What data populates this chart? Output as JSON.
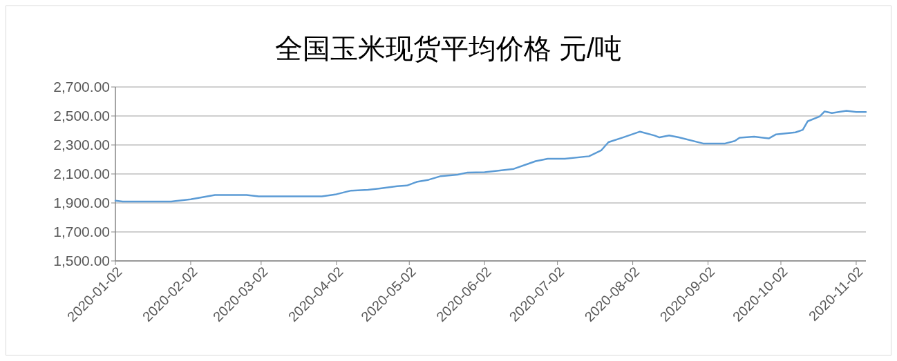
{
  "chart_data": {
    "type": "line",
    "title": "全国玉米现货平均价格 元/吨",
    "x": [
      "2020-01-02",
      "2020-01-05",
      "2020-01-25",
      "2020-02-02",
      "2020-02-12",
      "2020-02-25",
      "2020-03-01",
      "2020-03-27",
      "2020-04-02",
      "2020-04-08",
      "2020-04-15",
      "2020-04-20",
      "2020-04-27",
      "2020-05-01",
      "2020-05-05",
      "2020-05-10",
      "2020-05-15",
      "2020-05-22",
      "2020-05-26",
      "2020-06-02",
      "2020-06-14",
      "2020-06-23",
      "2020-06-28",
      "2020-07-05",
      "2020-07-15",
      "2020-07-20",
      "2020-07-23",
      "2020-07-29",
      "2020-08-05",
      "2020-08-11",
      "2020-08-13",
      "2020-08-17",
      "2020-08-21",
      "2020-08-31",
      "2020-09-09",
      "2020-09-13",
      "2020-09-15",
      "2020-09-21",
      "2020-09-27",
      "2020-09-30",
      "2020-10-08",
      "2020-10-11",
      "2020-10-13",
      "2020-10-18",
      "2020-10-20",
      "2020-10-23",
      "2020-10-29",
      "2020-11-02",
      "2020-11-06"
    ],
    "series": [
      {
        "color": "#5b9bd5",
        "values": [
          1915,
          1910,
          1910,
          1925,
          1955,
          1955,
          1945,
          1945,
          1960,
          1985,
          1990,
          2000,
          2015,
          2020,
          2045,
          2060,
          2085,
          2095,
          2110,
          2112,
          2135,
          2188,
          2205,
          2205,
          2222,
          2262,
          2319,
          2352,
          2392,
          2365,
          2352,
          2365,
          2352,
          2310,
          2310,
          2327,
          2350,
          2357,
          2345,
          2373,
          2387,
          2404,
          2463,
          2497,
          2531,
          2520,
          2536,
          2527,
          2527
        ]
      }
    ],
    "xlim": [
      "2020-01-02",
      "2020-11-06"
    ],
    "xticks": [
      "2020-01-02",
      "2020-02-02",
      "2020-03-02",
      "2020-04-02",
      "2020-05-02",
      "2020-06-02",
      "2020-07-02",
      "2020-08-02",
      "2020-09-02",
      "2020-10-02",
      "2020-11-02"
    ],
    "ylim": [
      1500,
      2700
    ],
    "yticks": [
      {
        "value": 1500,
        "label": "1,500.00"
      },
      {
        "value": 1700,
        "label": "1,700.00"
      },
      {
        "value": 1900,
        "label": "1,900.00"
      },
      {
        "value": 2100,
        "label": "2,100.00"
      },
      {
        "value": 2300,
        "label": "2,300.00"
      },
      {
        "value": 2500,
        "label": "2,500.00"
      },
      {
        "value": 2700,
        "label": "2,700.00"
      }
    ],
    "grid": "y",
    "marker": "none",
    "line_style": "solid"
  }
}
